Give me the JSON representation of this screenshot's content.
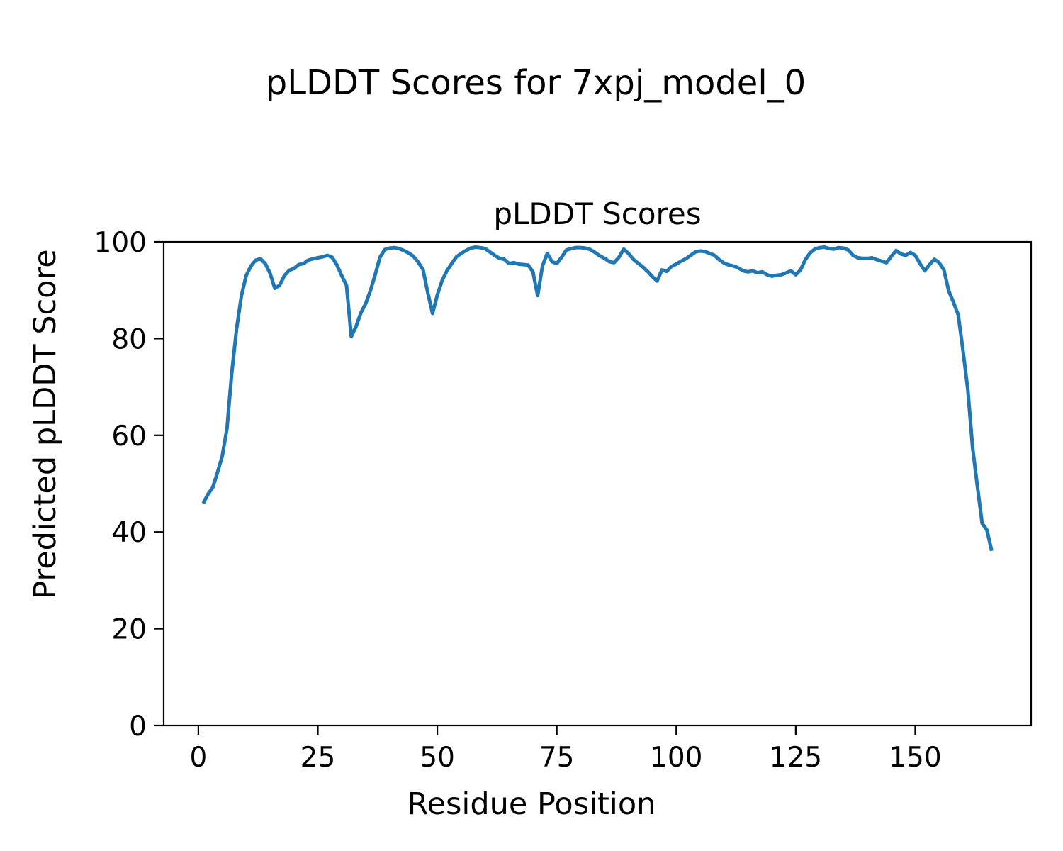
{
  "figure": {
    "suptitle": "pLDDT Scores for 7xpj_model_0",
    "background": "#ffffff"
  },
  "chart_data": {
    "type": "line",
    "title": "pLDDT Scores",
    "xlabel": "Residue Position",
    "ylabel": "Predicted pLDDT Score",
    "xlim": [
      -7.25,
      174.25
    ],
    "ylim": [
      0,
      100
    ],
    "xticks": [
      0,
      25,
      50,
      75,
      100,
      125,
      150
    ],
    "yticks": [
      0,
      20,
      40,
      60,
      80,
      100
    ],
    "grid": false,
    "legend": null,
    "axis_color": "#000000",
    "text_color": "#000000",
    "series": [
      {
        "name": "pLDDT",
        "color": "#1f77b4",
        "line_width": 5,
        "x_start": 1,
        "x_step": 1,
        "values": [
          45.9,
          47.8,
          49.2,
          52.3,
          55.7,
          61.5,
          73.0,
          82.0,
          88.8,
          93.0,
          95.0,
          96.2,
          96.5,
          95.5,
          93.5,
          90.4,
          91.0,
          93.0,
          94.1,
          94.5,
          95.3,
          95.5,
          96.2,
          96.5,
          96.7,
          96.9,
          97.2,
          96.8,
          95.2,
          93.0,
          91.0,
          80.4,
          82.5,
          85.3,
          87.2,
          89.9,
          93.2,
          96.8,
          98.4,
          98.7,
          98.8,
          98.6,
          98.2,
          97.7,
          97.0,
          95.8,
          94.3,
          89.5,
          85.2,
          89.0,
          92.0,
          94.0,
          95.5,
          96.9,
          97.6,
          98.2,
          98.7,
          98.9,
          98.8,
          98.6,
          97.9,
          97.2,
          96.6,
          96.4,
          95.5,
          95.7,
          95.4,
          95.3,
          95.2,
          93.8,
          88.9,
          95.0,
          97.6,
          95.9,
          95.5,
          96.8,
          98.3,
          98.6,
          98.8,
          98.8,
          98.7,
          98.4,
          97.8,
          97.1,
          96.6,
          95.9,
          95.7,
          96.8,
          98.5,
          97.6,
          96.4,
          95.6,
          94.8,
          93.9,
          92.8,
          91.9,
          94.2,
          93.9,
          94.9,
          95.4,
          96.0,
          96.5,
          97.2,
          97.9,
          98.1,
          98.0,
          97.6,
          97.2,
          96.3,
          95.6,
          95.2,
          95.0,
          94.6,
          94.0,
          93.8,
          94.0,
          93.6,
          93.8,
          93.2,
          92.9,
          93.1,
          93.2,
          93.6,
          94.0,
          93.2,
          94.2,
          96.3,
          97.7,
          98.5,
          98.8,
          98.9,
          98.6,
          98.5,
          98.8,
          98.7,
          98.3,
          97.2,
          96.7,
          96.6,
          96.6,
          96.7,
          96.3,
          96.0,
          95.7,
          97.0,
          98.2,
          97.5,
          97.2,
          97.8,
          97.2,
          95.5,
          94.0,
          95.3,
          96.4,
          95.7,
          94.2,
          89.9,
          87.5,
          84.9,
          77.5,
          69.5,
          57.5,
          49.5,
          41.8,
          40.4,
          36.1
        ]
      }
    ]
  }
}
